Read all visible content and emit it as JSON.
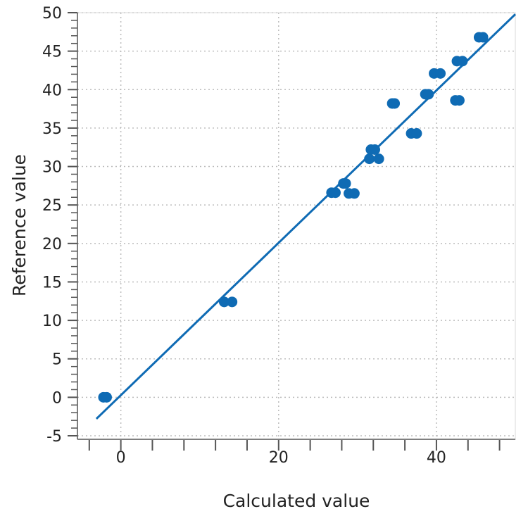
{
  "chart_data": {
    "type": "scatter",
    "title": "",
    "xlabel": "Calculated value",
    "ylabel": "Reference value",
    "xlim": [
      -5.5,
      50
    ],
    "ylim": [
      -5,
      50
    ],
    "x_ticks": [
      0,
      20,
      40
    ],
    "x_minor_step": 4,
    "y_ticks": [
      -5,
      0,
      5,
      10,
      15,
      20,
      25,
      30,
      35,
      40,
      45,
      50
    ],
    "y_minor_step": 1,
    "grid": true,
    "colors": {
      "points": "#0f6bb4",
      "line": "#0f6bb4",
      "grid": "#bdbdbd"
    },
    "points": [
      {
        "x": -2.2,
        "y": 0.0
      },
      {
        "x": -1.8,
        "y": 0.0
      },
      {
        "x": 13.1,
        "y": 12.4
      },
      {
        "x": 14.1,
        "y": 12.4
      },
      {
        "x": 26.7,
        "y": 26.6
      },
      {
        "x": 27.2,
        "y": 26.6
      },
      {
        "x": 28.2,
        "y": 27.8
      },
      {
        "x": 28.5,
        "y": 27.8
      },
      {
        "x": 28.9,
        "y": 26.5
      },
      {
        "x": 29.6,
        "y": 26.5
      },
      {
        "x": 31.5,
        "y": 31.0
      },
      {
        "x": 32.7,
        "y": 31.0
      },
      {
        "x": 31.7,
        "y": 32.2
      },
      {
        "x": 32.2,
        "y": 32.2
      },
      {
        "x": 34.4,
        "y": 38.2
      },
      {
        "x": 34.7,
        "y": 38.2
      },
      {
        "x": 36.8,
        "y": 34.3
      },
      {
        "x": 37.5,
        "y": 34.3
      },
      {
        "x": 38.6,
        "y": 39.4
      },
      {
        "x": 39.0,
        "y": 39.4
      },
      {
        "x": 39.7,
        "y": 42.1
      },
      {
        "x": 40.5,
        "y": 42.1
      },
      {
        "x": 42.4,
        "y": 38.6
      },
      {
        "x": 42.9,
        "y": 38.6
      },
      {
        "x": 42.6,
        "y": 43.7
      },
      {
        "x": 43.3,
        "y": 43.7
      },
      {
        "x": 45.4,
        "y": 46.8
      },
      {
        "x": 45.9,
        "y": 46.8
      }
    ],
    "fit_line": {
      "x": [
        -3.1,
        50
      ],
      "y": [
        -2.8,
        49.8
      ]
    }
  }
}
